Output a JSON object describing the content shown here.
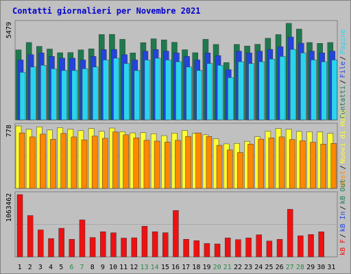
{
  "chart_data": {
    "type": "bar",
    "title": "Contatti giornalieri per Novembre 2021",
    "categories": [
      "1",
      "2",
      "3",
      "4",
      "5",
      "6",
      "7",
      "8",
      "9",
      "10",
      "11",
      "12",
      "13",
      "14",
      "15",
      "16",
      "17",
      "18",
      "19",
      "20",
      "21",
      "22",
      "23",
      "24",
      "25",
      "26",
      "27",
      "28",
      "29",
      "30",
      "31"
    ],
    "weekend_days": [
      "6",
      "7",
      "13",
      "14",
      "20",
      "21",
      "27",
      "28"
    ],
    "colors": {
      "background": "#c0c0c0",
      "frame": "#808080",
      "title": "#0000cc",
      "visits": "#1e7a4e",
      "pages": "#2244dd",
      "hits": "#2ad4ee",
      "hosts": "#ffff33",
      "kb_in": "#ff8800",
      "kb_out": "#1e7a4e",
      "kb_f": "#ee1111",
      "weekend_label": "#2a8a4a"
    },
    "panels": [
      {
        "id": "top",
        "max_label": "5479",
        "ymax": 5479,
        "series": [
          {
            "key": "visits",
            "values": [
              3970,
              4390,
              4170,
              4020,
              3810,
              3820,
              3970,
              4030,
              4840,
              4850,
              4570,
              3800,
              4380,
              4600,
              4540,
              4400,
              3980,
              3810,
              4570,
              4280,
              3250,
              4280,
              4190,
              4290,
              4630,
              4840,
              5479,
              5150,
              4390,
              4340,
              4390
            ]
          },
          {
            "key": "pages",
            "values": [
              3400,
              3700,
              3800,
              3600,
              3500,
              3500,
              3400,
              3600,
              3990,
              4000,
              3700,
              3400,
              3900,
              3990,
              3900,
              3800,
              3600,
              3400,
              3800,
              3650,
              2850,
              3900,
              3800,
              3900,
              4000,
              4150,
              4700,
              4350,
              3900,
              3800,
              3900
            ]
          },
          {
            "key": "hits",
            "values": [
              2700,
              3000,
              3100,
              2900,
              2800,
              2800,
              2900,
              3000,
              3400,
              3500,
              3200,
              2800,
              3400,
              3500,
              3400,
              3300,
              3000,
              2800,
              3200,
              3100,
              2400,
              3300,
              3200,
              3300,
              3450,
              3600,
              4000,
              3800,
              3400,
              3300,
              3400
            ]
          }
        ],
        "legend": [
          {
            "label": "Contatti",
            "key": "visits"
          },
          {
            "label": "File",
            "key": "pages"
          },
          {
            "label": "Pagine",
            "key": "hits"
          }
        ]
      },
      {
        "id": "middle",
        "max_label": "778",
        "ymax": 778,
        "series": [
          {
            "key": "hosts",
            "values": [
              778,
              738,
              768,
              728,
              758,
              738,
              720,
              748,
              712,
              752,
              706,
              692,
              696,
              682,
              658,
              690,
              722,
              686,
              668,
              620,
              556,
              562,
              588,
              645,
              715,
              746,
              738,
              711,
              708,
              704,
              686
            ]
          },
          {
            "key": "kb_in",
            "values": [
              692,
              642,
              677,
              612,
              686,
              642,
              606,
              652,
              625,
              705,
              668,
              630,
              600,
              590,
              578,
              600,
              648,
              692,
              648,
              538,
              480,
              448,
              552,
              615,
              630,
              642,
              610,
              594,
              576,
              552,
              562
            ]
          }
        ],
        "legend": [
          {
            "label": "Host",
            "key": "kb_in"
          },
          {
            "label": "Nuovi di Host",
            "key": "hosts"
          }
        ]
      },
      {
        "id": "bottom",
        "max_label": "1063462",
        "ymax": 1063462,
        "series": [
          {
            "key": "kb_f",
            "values": [
              1063462,
              706180,
              461010,
              312930,
              489450,
              300830,
              631610,
              330740,
              429590,
              411460,
              320890,
              326220,
              522750,
              429590,
              412990,
              791850,
              300830,
              276680,
              228800,
              221650,
              323930,
              294790,
              323540,
              377320,
              271180,
              299530,
              811960,
              360990,
              382300,
              428330,
              0
            ]
          }
        ],
        "legend": [
          {
            "label": "kB F",
            "key": "kb_f"
          },
          {
            "label": "kB In",
            "key": "pages"
          },
          {
            "label": "kB Out",
            "key": "kb_out"
          }
        ]
      }
    ]
  }
}
